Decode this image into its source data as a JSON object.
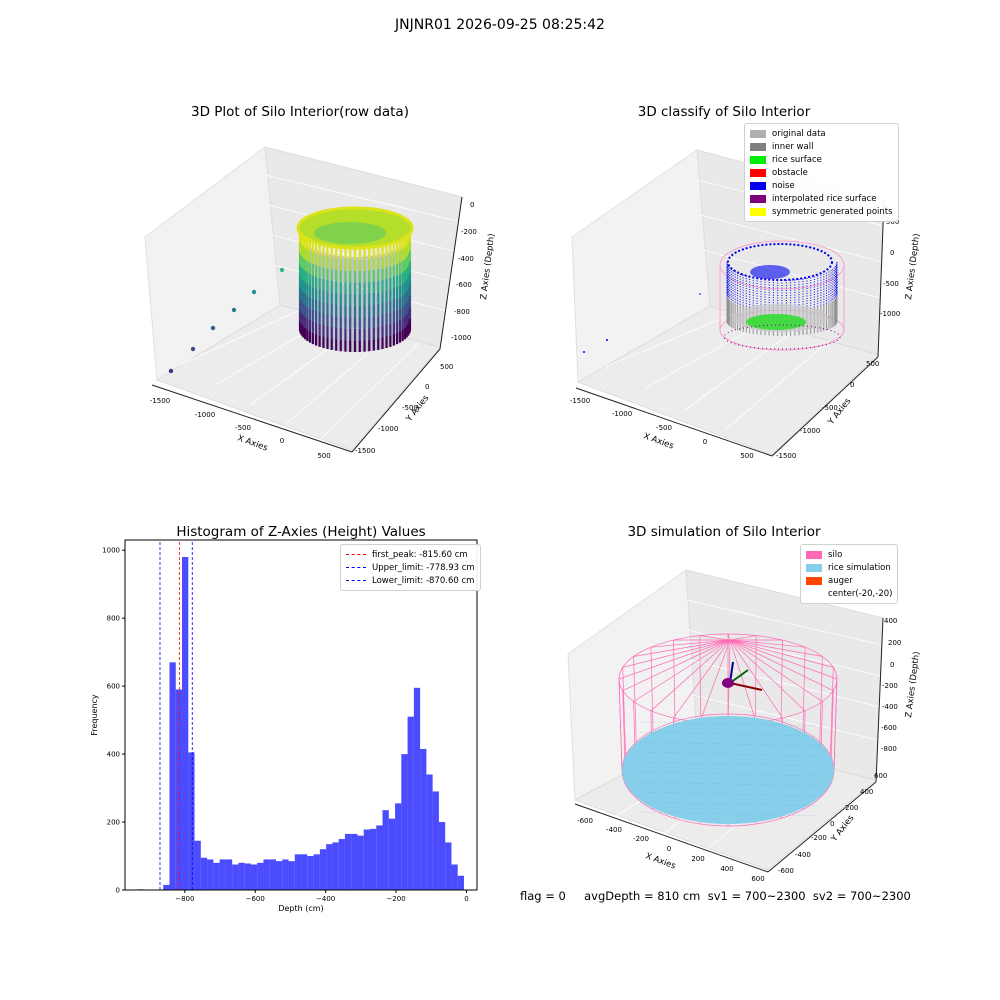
{
  "figure": {
    "suptitle": "JNJNR01 2026-09-25 08:25:42",
    "status_line": "flag = 0     avgDepth = 810 cm  sv1 = 700~2300  sv2 = 700~2300"
  },
  "chart_data": [
    {
      "type": "scatter",
      "title": "3D Plot of Silo Interior(row data)",
      "xlabel": "X Axies",
      "ylabel": "Y Axies",
      "zlabel": "Z Axies (Depth)",
      "xticks": [
        "-1500",
        "-1000",
        "-500",
        "0",
        "500"
      ],
      "yticks": [
        "500",
        "0",
        "-500",
        "-1000",
        "-1500"
      ],
      "zticks": [
        "0",
        "-200",
        "-400",
        "-600",
        "-800",
        "-1000"
      ],
      "colormap": "viridis",
      "grid": true
    },
    {
      "type": "scatter",
      "title": "3D classify of Silo Interior",
      "xlabel": "X Axies",
      "ylabel": "Y Axies",
      "zlabel": "Z Axies (Depth)",
      "xticks": [
        "-1500",
        "-1000",
        "-500",
        "0",
        "500"
      ],
      "yticks": [
        "500",
        "0",
        "-500",
        "-1000",
        "-1500"
      ],
      "zticks": [
        "500",
        "0",
        "-500",
        "-1000"
      ],
      "legend_position": "top-right",
      "legend": [
        {
          "label": "original data",
          "color": "#b0b0b0"
        },
        {
          "label": "inner wall",
          "color": "#808080"
        },
        {
          "label": "rice surface",
          "color": "#00ee00"
        },
        {
          "label": "obstacle",
          "color": "#ff0000"
        },
        {
          "label": "noise",
          "color": "#0000ee"
        },
        {
          "label": "interpolated rice surface",
          "color": "#800080"
        },
        {
          "label": "symmetric generated points",
          "color": "#ffff00"
        }
      ],
      "grid": true
    },
    {
      "type": "bar",
      "title": "Histogram of Z-Axies (Height) Values",
      "xlabel": "Depth (cm)",
      "ylabel": "Frequency",
      "xlim": [
        -970,
        30
      ],
      "ylim": [
        0,
        1030
      ],
      "xticks": [
        -800,
        -600,
        -400,
        -200,
        0
      ],
      "yticks": [
        0,
        200,
        400,
        600,
        800,
        1000
      ],
      "bar_color": "#0000ff",
      "bin_width": 17.8,
      "bin_starts": [
        -932.6,
        -861.4,
        -843.6,
        -825.8,
        -808.0,
        -790.2,
        -772.4,
        -754.6,
        -736.8,
        -719.0,
        -701.2,
        -683.4,
        -665.6,
        -647.8,
        -630.0,
        -612.2,
        -594.4,
        -576.6,
        -558.8,
        -541.0,
        -523.2,
        -505.4,
        -487.6,
        -469.8,
        -452.0,
        -434.2,
        -416.4,
        -398.6,
        -380.8,
        -363.0,
        -345.2,
        -327.4,
        -309.6,
        -291.8,
        -274.0,
        -256.2,
        -238.4,
        -220.6,
        -202.8,
        -185.0,
        -167.2,
        -149.4,
        -131.6,
        -113.8,
        -96.0,
        -78.2,
        -60.4,
        -42.6,
        -24.8
      ],
      "values": [
        2,
        15,
        670,
        590,
        980,
        405,
        145,
        95,
        90,
        80,
        90,
        90,
        75,
        80,
        78,
        75,
        80,
        90,
        90,
        85,
        90,
        85,
        105,
        105,
        100,
        105,
        120,
        135,
        140,
        150,
        165,
        165,
        160,
        178,
        180,
        190,
        235,
        210,
        255,
        400,
        510,
        595,
        415,
        340,
        290,
        200,
        140,
        75,
        42
      ],
      "reference_lines": [
        {
          "label": "first_peak: -815.60 cm",
          "x": -815.6,
          "color": "#ff0000"
        },
        {
          "label": "Upper_limit: -778.93 cm",
          "x": -778.93,
          "color": "#0000ff"
        },
        {
          "label": "Lower_limit: -870.60 cm",
          "x": -870.6,
          "color": "#0000ff"
        }
      ],
      "legend_position": "top-right"
    },
    {
      "type": "scatter",
      "title": "3D simulation of Silo Interior",
      "xlabel": "X Axies",
      "ylabel": "Y Axies",
      "zlabel": "Z Axies (Depth)",
      "xticks": [
        "-600",
        "-400",
        "-200",
        "0",
        "200",
        "400",
        "600"
      ],
      "yticks": [
        "600",
        "400",
        "200",
        "0",
        "-200",
        "-400",
        "-600"
      ],
      "zticks": [
        "400",
        "200",
        "0",
        "-200",
        "-400",
        "-600",
        "-800"
      ],
      "legend_position": "top-right",
      "legend": [
        {
          "label": "silo",
          "color": "#ff69b4"
        },
        {
          "label": "rice simulation",
          "color": "#87ceeb"
        },
        {
          "label": "auger",
          "color": "#ff4500"
        },
        {
          "label": "center(-20,-20)",
          "color": ""
        }
      ],
      "grid": true
    }
  ]
}
